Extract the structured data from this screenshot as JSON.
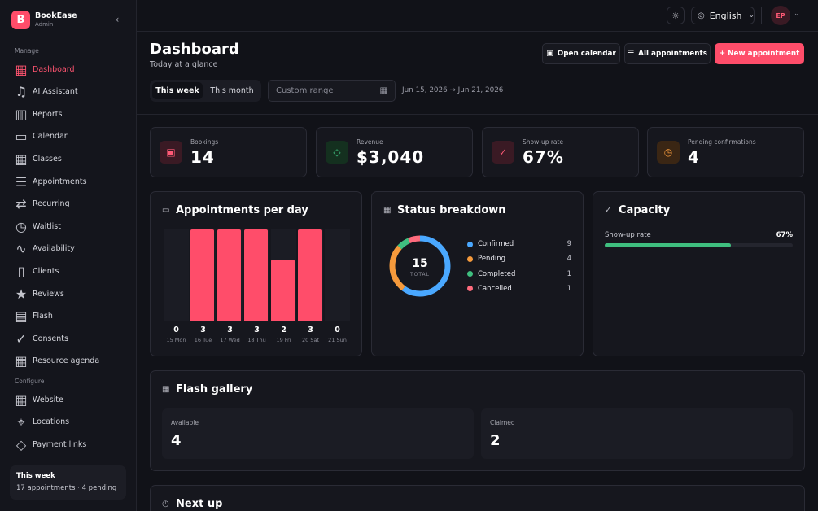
{
  "brand": {
    "logo_letter": "B",
    "name": "BookEase",
    "role": "Admin"
  },
  "sidebar": {
    "manage_label": "Manage",
    "configure_label": "Configure",
    "items": [
      {
        "label": "Dashboard",
        "icon": "grid-icon"
      },
      {
        "label": "AI Assistant",
        "icon": "bell-icon"
      },
      {
        "label": "Reports",
        "icon": "bar-chart-icon"
      },
      {
        "label": "Calendar",
        "icon": "calendar-icon"
      },
      {
        "label": "Classes",
        "icon": "grid-icon"
      },
      {
        "label": "Appointments",
        "icon": "list-icon"
      },
      {
        "label": "Recurring",
        "icon": "repeat-icon"
      },
      {
        "label": "Waitlist",
        "icon": "clock-icon"
      },
      {
        "label": "Availability",
        "icon": "activity-icon"
      },
      {
        "label": "Clients",
        "icon": "clipboard-icon"
      },
      {
        "label": "Reviews",
        "icon": "star-icon"
      },
      {
        "label": "Flash",
        "icon": "file-icon"
      },
      {
        "label": "Consents",
        "icon": "check-icon"
      },
      {
        "label": "Resource agenda",
        "icon": "grid-icon"
      }
    ],
    "config_items": [
      {
        "label": "Website",
        "icon": "grid-icon"
      },
      {
        "label": "Locations",
        "icon": "pin-icon"
      },
      {
        "label": "Payment links",
        "icon": "tag-icon"
      }
    ],
    "week_card": {
      "title": "This week",
      "summary": "17 appointments · 4 pending"
    }
  },
  "topbar": {
    "language": "English",
    "avatar_initials": "EP"
  },
  "header": {
    "title": "Dashboard",
    "subtitle": "Today at a glance",
    "open_calendar": "Open calendar",
    "all_appointments": "All appointments",
    "new_appointment": "+ New appointment"
  },
  "range": {
    "this_week": "This week",
    "this_month": "This month",
    "custom_placeholder": "Custom range",
    "dates": "Jun 15, 2026 → Jun 21, 2026"
  },
  "stats": [
    {
      "label": "Bookings",
      "value": "14",
      "color": "#ff4d6a"
    },
    {
      "label": "Revenue",
      "value": "$3,040",
      "color": "#3fbf7f"
    },
    {
      "label": "Show-up rate",
      "value": "67%",
      "color": "#ff4d6a"
    },
    {
      "label": "Pending confirmations",
      "value": "4",
      "color": "#f59a3c"
    }
  ],
  "appointments_panel": {
    "title": "Appointments per day"
  },
  "chart_data": {
    "type": "bar",
    "categories": [
      "15 Mon",
      "16 Tue",
      "17 Wed",
      "18 Thu",
      "19 Fri",
      "20 Sat",
      "21 Sun"
    ],
    "values": [
      0,
      3,
      3,
      3,
      2,
      3,
      0
    ],
    "ylim": [
      0,
      3
    ],
    "color": "#ff4d6a"
  },
  "status_panel": {
    "title": "Status breakdown",
    "total": "15",
    "total_label": "TOTAL",
    "items": [
      {
        "label": "Confirmed",
        "value": 9,
        "color": "#4aa8ff"
      },
      {
        "label": "Pending",
        "value": 4,
        "color": "#f59a3c"
      },
      {
        "label": "Completed",
        "value": 1,
        "color": "#3fbf7f"
      },
      {
        "label": "Cancelled",
        "value": 1,
        "color": "#ff6b7d"
      }
    ]
  },
  "capacity_panel": {
    "title": "Capacity",
    "label": "Show-up rate",
    "value": "67%",
    "fraction": 0.67
  },
  "flash_panel": {
    "title": "Flash gallery",
    "available_label": "Available",
    "available_value": "4",
    "claimed_label": "Claimed",
    "claimed_value": "2"
  },
  "next_up": {
    "title": "Next up"
  }
}
